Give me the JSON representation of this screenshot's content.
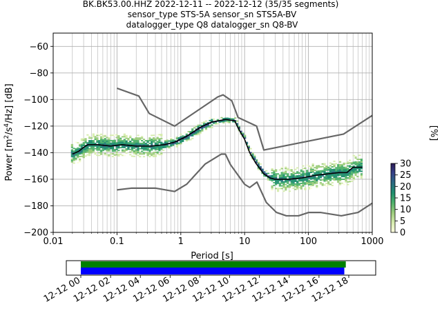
{
  "title_lines": [
    "BK.BK53.00.HHZ   2022-12-11 -- 2022-12-12  (35/35 segments)",
    "sensor_type STS-5A sensor_sn STS5A-BV",
    "datalogger_type Q8 datalogger_sn Q8-BV"
  ],
  "chart_data": {
    "type": "heatmap",
    "title": "BK.BK53.00.HHZ   2022-12-11 -- 2022-12-12  (35/35 segments)",
    "xlabel": "Period [s]",
    "ylabel": "Power [m²/s⁴/Hz] [dB]",
    "xscale": "log",
    "xlim": [
      0.01,
      1000
    ],
    "ylim": [
      -200,
      -50
    ],
    "x_ticks": [
      "0.01",
      "0.1",
      "1",
      "10",
      "100",
      "1000"
    ],
    "y_ticks": [
      "−200",
      "−180",
      "−160",
      "−140",
      "−120",
      "−100",
      "−80",
      "−60"
    ],
    "grid": true,
    "colorbar": {
      "label": "[%]",
      "range": [
        0,
        30
      ],
      "ticks": [
        "0",
        "5",
        "10",
        "15",
        "20",
        "25",
        "30"
      ],
      "colors": [
        "#fdfde0",
        "#d6ecae",
        "#9ccc7c",
        "#4fb16b",
        "#1f8f6e",
        "#2a6b82",
        "#36428a",
        "#2a1a55"
      ]
    },
    "series": [
      {
        "name": "noise model high",
        "color": "#666666",
        "x": [
          0.1,
          0.22,
          0.32,
          0.8,
          3.8,
          4.6,
          6.3,
          7.9,
          15.4,
          20,
          354.8,
          1000
        ],
        "y": [
          -91.5,
          -97.4,
          -110.5,
          -120,
          -98,
          -96.5,
          -101,
          -113.5,
          -120,
          -138,
          -126,
          -112
        ]
      },
      {
        "name": "noise model low",
        "color": "#666666",
        "x": [
          0.1,
          0.17,
          0.4,
          0.8,
          1.24,
          2.4,
          4.3,
          5,
          6,
          10,
          12,
          15.6,
          21.9,
          31.6,
          45,
          70,
          101,
          154,
          328,
          600,
          1000
        ],
        "y": [
          -168,
          -166.7,
          -166.7,
          -169.2,
          -163.7,
          -148.6,
          -141.1,
          -141.1,
          -149,
          -163.8,
          -166.2,
          -162.1,
          -177.5,
          -185,
          -187.5,
          -187.5,
          -185,
          -185,
          -187.5,
          -185,
          -178
        ]
      },
      {
        "name": "mode",
        "color": "#000000",
        "x": [
          0.02,
          0.025,
          0.03,
          0.035,
          0.05,
          0.08,
          0.12,
          0.2,
          0.35,
          0.55,
          0.8,
          1.2,
          2,
          3,
          5,
          7,
          8,
          10,
          12,
          15,
          20,
          25,
          30,
          50,
          80,
          130,
          200,
          300,
          400,
          500,
          600,
          700
        ],
        "y": [
          -141,
          -139,
          -136,
          -134,
          -134,
          -135,
          -134,
          -135,
          -135,
          -134,
          -132,
          -128,
          -121,
          -117,
          -115,
          -116,
          -122,
          -130,
          -140,
          -148,
          -156,
          -159,
          -160,
          -160,
          -159,
          -157,
          -156,
          -155,
          -155,
          -151,
          -151,
          -151
        ]
      }
    ]
  },
  "timeline": {
    "tick_labels": [
      "12-12 00",
      "12-12 02",
      "12-12 04",
      "12-12 06",
      "12-12 08",
      "12-12 10",
      "12-12 12",
      "12-12 14",
      "12-12 16",
      "12-12 18"
    ],
    "bars": [
      {
        "color": "#008000",
        "start_hour": 0,
        "end_hour": 17.8
      },
      {
        "color": "#0000ff",
        "start_hour": 0,
        "end_hour": 17.7
      }
    ]
  }
}
